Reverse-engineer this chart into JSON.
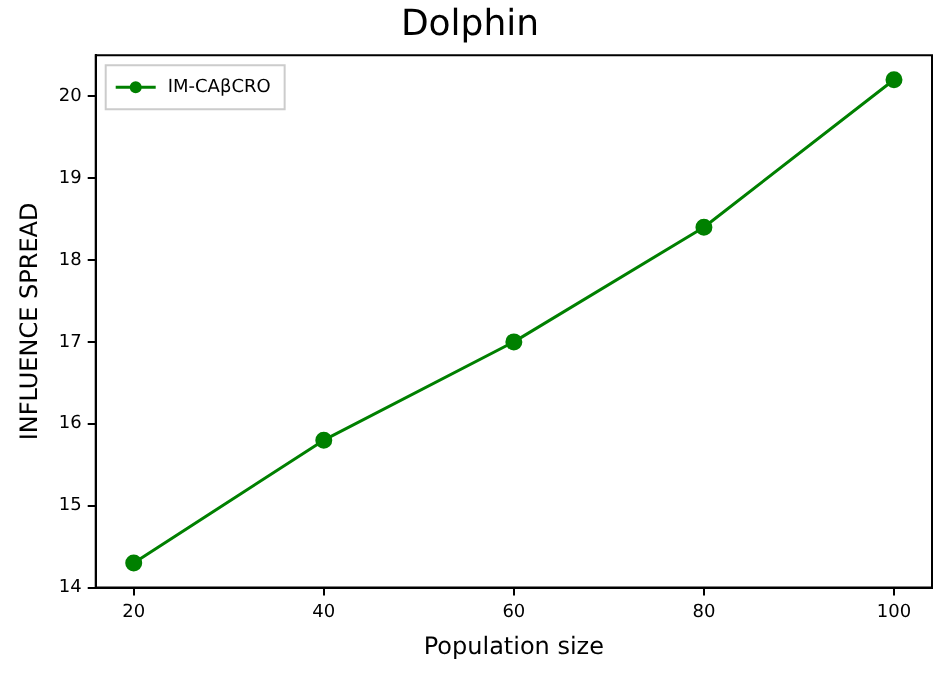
{
  "chart_data": {
    "type": "line",
    "title": "Dolphin",
    "xlabel": "Population size",
    "ylabel": "INFLUENCE SPREAD",
    "x": [
      20,
      40,
      60,
      80,
      100
    ],
    "series": [
      {
        "name": "IM-CAβCRO",
        "color": "#008000",
        "values": [
          14.3,
          15.8,
          17.0,
          18.4,
          20.2
        ]
      }
    ],
    "xlim": [
      16,
      104
    ],
    "xticks": [
      20,
      40,
      60,
      80,
      100
    ],
    "ylim": [
      14,
      20.5
    ],
    "yticks": [
      14,
      15,
      16,
      17,
      18,
      19,
      20
    ],
    "grid": false,
    "legend": "top left",
    "marker": "circle",
    "line_style": "solid"
  }
}
